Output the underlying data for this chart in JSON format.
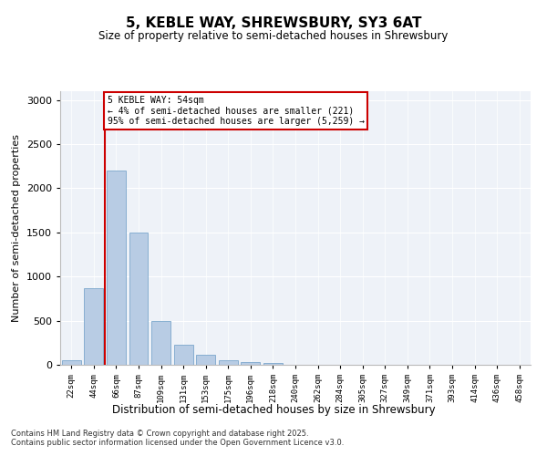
{
  "title": "5, KEBLE WAY, SHREWSBURY, SY3 6AT",
  "subtitle": "Size of property relative to semi-detached houses in Shrewsbury",
  "xlabel": "Distribution of semi-detached houses by size in Shrewsbury",
  "ylabel": "Number of semi-detached properties",
  "categories": [
    "22sqm",
    "44sqm",
    "66sqm",
    "87sqm",
    "109sqm",
    "131sqm",
    "153sqm",
    "175sqm",
    "196sqm",
    "218sqm",
    "240sqm",
    "262sqm",
    "284sqm",
    "305sqm",
    "327sqm",
    "349sqm",
    "371sqm",
    "393sqm",
    "414sqm",
    "436sqm",
    "458sqm"
  ],
  "values": [
    50,
    870,
    2200,
    1500,
    500,
    230,
    110,
    50,
    35,
    20,
    5,
    3,
    2,
    0,
    0,
    0,
    0,
    0,
    0,
    0,
    0
  ],
  "bar_color": "#b8cce4",
  "bar_edge_color": "#7ba7cc",
  "vline_color": "#cc0000",
  "vline_x": 1.5,
  "annotation_title": "5 KEBLE WAY: 54sqm",
  "annotation_line1": "← 4% of semi-detached houses are smaller (221)",
  "annotation_line2": "95% of semi-detached houses are larger (5,259) →",
  "annotation_box_color": "#ffffff",
  "annotation_box_edge": "#cc0000",
  "ylim": [
    0,
    3100
  ],
  "yticks": [
    0,
    500,
    1000,
    1500,
    2000,
    2500,
    3000
  ],
  "background_color": "#eef2f8",
  "footer1": "Contains HM Land Registry data © Crown copyright and database right 2025.",
  "footer2": "Contains public sector information licensed under the Open Government Licence v3.0."
}
